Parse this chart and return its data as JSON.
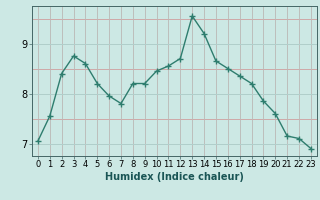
{
  "x": [
    0,
    1,
    2,
    3,
    4,
    5,
    6,
    7,
    8,
    9,
    10,
    11,
    12,
    13,
    14,
    15,
    16,
    17,
    18,
    19,
    20,
    21,
    22,
    23
  ],
  "y": [
    7.05,
    7.55,
    8.4,
    8.75,
    8.6,
    8.2,
    7.95,
    7.8,
    8.2,
    8.2,
    8.45,
    8.55,
    8.7,
    9.55,
    9.2,
    8.65,
    8.5,
    8.35,
    8.2,
    7.85,
    7.6,
    7.15,
    7.1,
    6.9
  ],
  "line_color": "#2e7d6e",
  "marker": "+",
  "marker_size": 4,
  "bg_color": "#cce8e4",
  "grid_color": "#b0d0cc",
  "red_grid_color": "#d09090",
  "xlabel": "Humidex (Indice chaleur)",
  "xlabel_fontsize": 7,
  "yticks": [
    7,
    8,
    9
  ],
  "xticks": [
    0,
    1,
    2,
    3,
    4,
    5,
    6,
    7,
    8,
    9,
    10,
    11,
    12,
    13,
    14,
    15,
    16,
    17,
    18,
    19,
    20,
    21,
    22,
    23
  ],
  "xlim": [
    -0.5,
    23.5
  ],
  "ylim": [
    6.75,
    9.75
  ],
  "tick_fontsize": 6,
  "linewidth": 1.0
}
